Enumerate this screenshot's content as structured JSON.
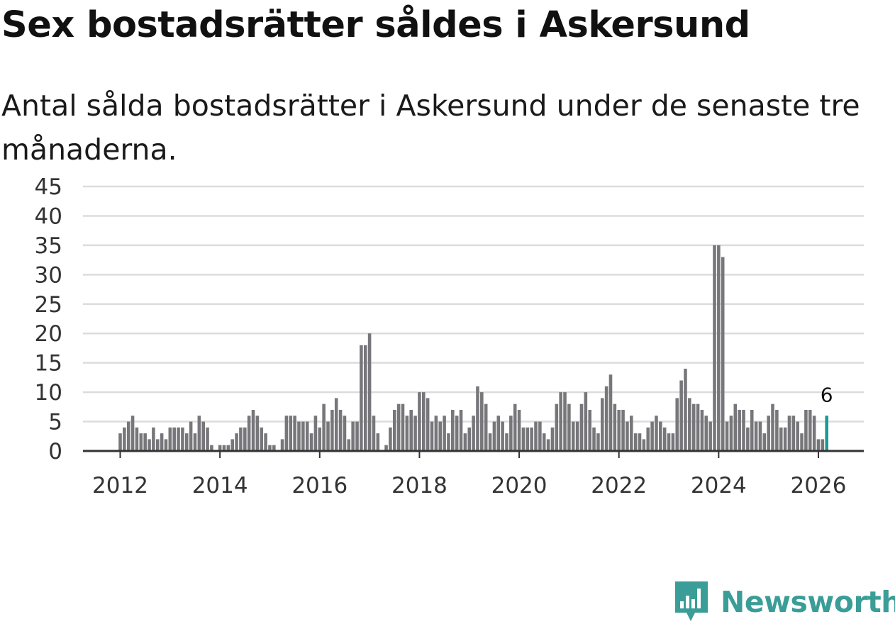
{
  "header": {
    "title": "Sex bostadsrätter såldes i Askersund",
    "subtitle": "Antal sålda bostadsrätter i Askersund under de senaste tre månaderna."
  },
  "brand": {
    "name": "Newsworthy",
    "logo_icon": "newsworthy-bar-chart-logo-icon",
    "color": "#3a9d97"
  },
  "colors": {
    "bar": "#77767a",
    "highlight": "#1a9a94",
    "grid": "#dcdcdc",
    "axis": "#333333"
  },
  "chart_data": {
    "type": "bar",
    "title": "Sex bostadsrätter såldes i Askersund",
    "xlabel": "",
    "ylabel": "",
    "ylim": [
      0,
      45
    ],
    "yticks": [
      "0",
      "5",
      "10",
      "15",
      "20",
      "25",
      "30",
      "35",
      "40",
      "45"
    ],
    "xticks": [
      "2012",
      "2014",
      "2016",
      "2018",
      "2020",
      "2022",
      "2024",
      "2026"
    ],
    "x_start": "2012-01",
    "frequency": "monthly",
    "values": [
      3,
      4,
      5,
      6,
      4,
      3,
      3,
      2,
      4,
      2,
      3,
      2,
      4,
      4,
      4,
      4,
      3,
      5,
      3,
      6,
      5,
      4,
      1,
      0,
      1,
      1,
      1,
      2,
      3,
      4,
      4,
      6,
      7,
      6,
      4,
      3,
      1,
      1,
      0,
      2,
      6,
      6,
      6,
      5,
      5,
      5,
      3,
      6,
      4,
      8,
      5,
      7,
      9,
      7,
      6,
      2,
      5,
      5,
      18,
      18,
      20,
      6,
      3,
      0,
      1,
      4,
      7,
      8,
      8,
      6,
      7,
      6,
      10,
      10,
      9,
      5,
      6,
      5,
      6,
      3,
      7,
      6,
      7,
      3,
      4,
      6,
      11,
      10,
      8,
      3,
      5,
      6,
      5,
      3,
      6,
      8,
      7,
      4,
      4,
      4,
      5,
      5,
      3,
      2,
      4,
      8,
      10,
      10,
      8,
      5,
      5,
      8,
      10,
      7,
      4,
      3,
      9,
      11,
      13,
      8,
      7,
      7,
      5,
      6,
      3,
      3,
      2,
      4,
      5,
      6,
      5,
      4,
      3,
      3,
      9,
      12,
      14,
      9,
      8,
      8,
      7,
      6,
      5,
      35,
      35,
      33,
      5,
      6,
      8,
      7,
      7,
      4,
      7,
      5,
      5,
      3,
      6,
      8,
      7,
      4,
      4,
      6,
      6,
      5,
      3,
      7,
      7,
      6,
      2,
      2,
      6
    ],
    "highlight_index": 170,
    "annotation": "6"
  }
}
